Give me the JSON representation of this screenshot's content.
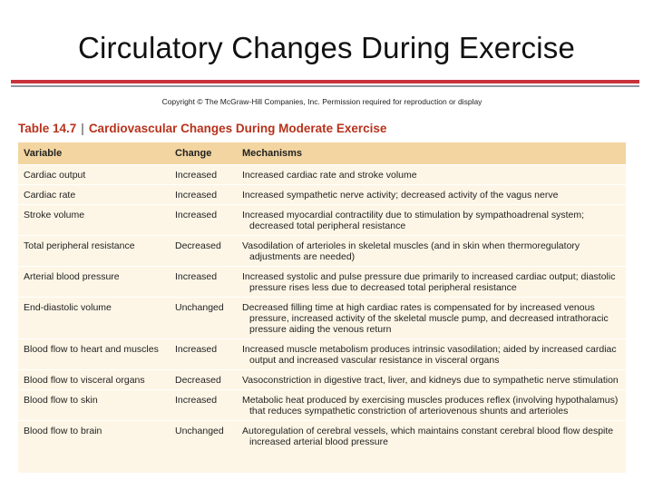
{
  "slide": {
    "title": "Circulatory Changes During Exercise",
    "copyright": "Copyright © The McGraw-Hill Companies, Inc. Permission required for reproduction or display"
  },
  "table": {
    "number": "Table 14.7",
    "separator": "|",
    "caption": "Cardiovascular Changes During Moderate Exercise",
    "headers": [
      "Variable",
      "Change",
      "Mechanisms"
    ],
    "rows": [
      {
        "variable": "Cardiac output",
        "change": "Increased",
        "mechanism": "Increased cardiac rate and stroke volume"
      },
      {
        "variable": "Cardiac rate",
        "change": "Increased",
        "mechanism": "Increased sympathetic nerve activity; decreased activity of the vagus nerve"
      },
      {
        "variable": "Stroke volume",
        "change": "Increased",
        "mechanism": "Increased myocardial contractility due to stimulation by sympathoadrenal system; decreased total peripheral resistance"
      },
      {
        "variable": "Total peripheral resistance",
        "change": "Decreased",
        "mechanism": "Vasodilation of arterioles in skeletal muscles (and in skin when thermoregulatory adjustments are needed)"
      },
      {
        "variable": "Arterial blood pressure",
        "change": "Increased",
        "mechanism": "Increased systolic and pulse pressure due primarily to increased cardiac output; diastolic pressure rises less due to decreased total peripheral resistance"
      },
      {
        "variable": "End-diastolic volume",
        "change": "Unchanged",
        "mechanism": "Decreased filling time at high cardiac rates is compensated for by increased venous pressure, increased activity of the skeletal muscle pump, and decreased intrathoracic pressure aiding the venous return"
      },
      {
        "variable": "Blood flow to heart and muscles",
        "change": "Increased",
        "mechanism": "Increased muscle metabolism produces intrinsic vasodilation; aided by increased cardiac output and increased vascular resistance in visceral organs"
      },
      {
        "variable": "Blood flow to visceral organs",
        "change": "Decreased",
        "mechanism": "Vasoconstriction in digestive tract, liver, and kidneys due to sympathetic nerve stimulation"
      },
      {
        "variable": "Blood flow to skin",
        "change": "Increased",
        "mechanism": "Metabolic heat produced by exercising muscles produces reflex (involving hypothalamus) that reduces sympathetic constriction of arteriovenous shunts and arterioles"
      },
      {
        "variable": "Blood flow to brain",
        "change": "Unchanged",
        "mechanism": "Autoregulation of cerebral vessels, which maintains constant cerebral blood flow despite increased arterial blood pressure"
      }
    ]
  }
}
